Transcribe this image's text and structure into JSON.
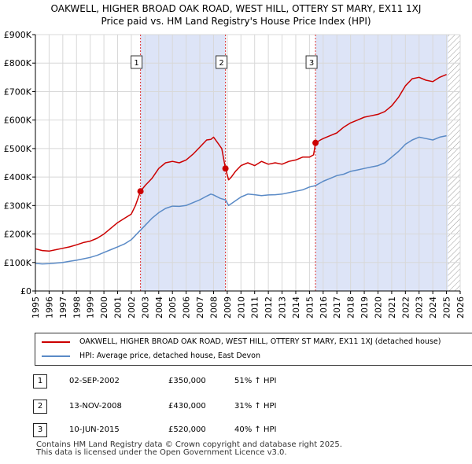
{
  "title_line1": "OAKWELL, HIGHER BROAD OAK ROAD, WEST HILL, OTTERY ST MARY, EX11 1XJ",
  "title_line2": "Price paid vs. HM Land Registry's House Price Index (HPI)",
  "colors": {
    "property": "#cc0000",
    "hpi": "#5a8ac6",
    "shade": "#dde4f7"
  },
  "legend": {
    "property_label": "OAKWELL, HIGHER BROAD OAK ROAD, WEST HILL, OTTERY ST MARY, EX11 1XJ (detached house)",
    "hpi_label": "HPI: Average price, detached house, East Devon"
  },
  "sales": [
    {
      "num": "1",
      "date": "02-SEP-2002",
      "price": "£350,000",
      "hpi": "51% ↑ HPI"
    },
    {
      "num": "2",
      "date": "13-NOV-2008",
      "price": "£430,000",
      "hpi": "31% ↑ HPI"
    },
    {
      "num": "3",
      "date": "10-JUN-2015",
      "price": "£520,000",
      "hpi": "40% ↑ HPI"
    }
  ],
  "footer_line1": "Contains HM Land Registry data © Crown copyright and database right 2025.",
  "footer_line2": "This data is licensed under the Open Government Licence v3.0.",
  "chart_data": {
    "type": "line",
    "xlim": [
      1995,
      2026
    ],
    "ylim": [
      0,
      900000
    ],
    "x_ticks": [
      "1995",
      "1996",
      "1997",
      "1998",
      "1999",
      "2000",
      "2001",
      "2002",
      "2003",
      "2004",
      "2005",
      "2006",
      "2007",
      "2008",
      "2009",
      "2010",
      "2011",
      "2012",
      "2013",
      "2014",
      "2015",
      "2016",
      "2017",
      "2018",
      "2019",
      "2020",
      "2021",
      "2022",
      "2023",
      "2024",
      "2025",
      "2026"
    ],
    "y_ticks": [
      {
        "value": 0,
        "label": "£0"
      },
      {
        "value": 100000,
        "label": "£100K"
      },
      {
        "value": 200000,
        "label": "£200K"
      },
      {
        "value": 300000,
        "label": "£300K"
      },
      {
        "value": 400000,
        "label": "£400K"
      },
      {
        "value": 500000,
        "label": "£500K"
      },
      {
        "value": 600000,
        "label": "£600K"
      },
      {
        "value": 700000,
        "label": "£700K"
      },
      {
        "value": 800000,
        "label": "£800K"
      },
      {
        "value": 900000,
        "label": "£900K"
      }
    ],
    "shaded_periods": [
      {
        "from": 2002.67,
        "to": 2008.87
      },
      {
        "from": 2015.44,
        "to": 2025.1
      }
    ],
    "hatched_from": 2025.1,
    "sale_markers": [
      {
        "label": "1",
        "x": 2002.67,
        "y": 350000
      },
      {
        "label": "2",
        "x": 2008.87,
        "y": 430000
      },
      {
        "label": "3",
        "x": 2015.44,
        "y": 520000
      }
    ],
    "series": [
      {
        "name": "OAKWELL, HIGHER BROAD OAK ROAD, WEST HILL, OTTERY ST MARY, EX11 1XJ (detached house)",
        "color": "#cc0000",
        "x": [
          1995.0,
          1995.5,
          1996.0,
          1996.5,
          1997.0,
          1997.5,
          1998.0,
          1998.5,
          1999.0,
          1999.5,
          2000.0,
          2000.5,
          2001.0,
          2001.5,
          2002.0,
          2002.3,
          2002.67,
          2003.0,
          2003.5,
          2004.0,
          2004.5,
          2005.0,
          2005.5,
          2006.0,
          2006.5,
          2007.0,
          2007.5,
          2007.8,
          2008.0,
          2008.3,
          2008.6,
          2008.87,
          2009.1,
          2009.3,
          2009.6,
          2010.0,
          2010.5,
          2011.0,
          2011.5,
          2012.0,
          2012.5,
          2013.0,
          2013.5,
          2014.0,
          2014.5,
          2015.0,
          2015.3,
          2015.44,
          2015.8,
          2016.0,
          2016.5,
          2017.0,
          2017.5,
          2018.0,
          2018.5,
          2019.0,
          2019.5,
          2020.0,
          2020.5,
          2021.0,
          2021.5,
          2022.0,
          2022.5,
          2023.0,
          2023.5,
          2024.0,
          2024.5,
          2025.0
        ],
        "y": [
          148000,
          142000,
          140000,
          145000,
          150000,
          155000,
          162000,
          170000,
          175000,
          185000,
          200000,
          220000,
          240000,
          255000,
          270000,
          300000,
          350000,
          370000,
          395000,
          430000,
          450000,
          455000,
          450000,
          460000,
          480000,
          505000,
          530000,
          532000,
          540000,
          520000,
          500000,
          430000,
          390000,
          400000,
          420000,
          440000,
          450000,
          440000,
          455000,
          445000,
          450000,
          445000,
          455000,
          460000,
          470000,
          470000,
          478000,
          520000,
          530000,
          535000,
          545000,
          555000,
          575000,
          590000,
          600000,
          610000,
          615000,
          620000,
          630000,
          650000,
          680000,
          720000,
          745000,
          750000,
          740000,
          735000,
          750000,
          760000
        ]
      },
      {
        "name": "HPI: Average price, detached house, East Devon",
        "color": "#5a8ac6",
        "x": [
          1995.0,
          1995.5,
          1996.0,
          1996.5,
          1997.0,
          1997.5,
          1998.0,
          1998.5,
          1999.0,
          1999.5,
          2000.0,
          2000.5,
          2001.0,
          2001.5,
          2002.0,
          2002.5,
          2003.0,
          2003.5,
          2004.0,
          2004.5,
          2005.0,
          2005.5,
          2006.0,
          2006.5,
          2007.0,
          2007.5,
          2007.8,
          2008.0,
          2008.5,
          2008.87,
          2009.1,
          2009.4,
          2010.0,
          2010.5,
          2011.0,
          2011.5,
          2012.0,
          2012.5,
          2013.0,
          2013.5,
          2014.0,
          2014.5,
          2015.0,
          2015.44,
          2016.0,
          2016.5,
          2017.0,
          2017.5,
          2018.0,
          2018.5,
          2019.0,
          2019.5,
          2020.0,
          2020.5,
          2021.0,
          2021.5,
          2022.0,
          2022.5,
          2023.0,
          2023.5,
          2024.0,
          2024.5,
          2025.0
        ],
        "y": [
          97000,
          95000,
          96000,
          98000,
          100000,
          104000,
          108000,
          113000,
          118000,
          125000,
          135000,
          145000,
          155000,
          165000,
          180000,
          205000,
          230000,
          255000,
          275000,
          290000,
          298000,
          297000,
          300000,
          310000,
          320000,
          333000,
          340000,
          337000,
          325000,
          320000,
          300000,
          310000,
          330000,
          340000,
          338000,
          335000,
          337000,
          338000,
          340000,
          345000,
          350000,
          355000,
          365000,
          370000,
          385000,
          395000,
          405000,
          410000,
          420000,
          425000,
          430000,
          435000,
          440000,
          450000,
          470000,
          490000,
          515000,
          530000,
          540000,
          535000,
          530000,
          540000,
          545000
        ]
      }
    ]
  }
}
